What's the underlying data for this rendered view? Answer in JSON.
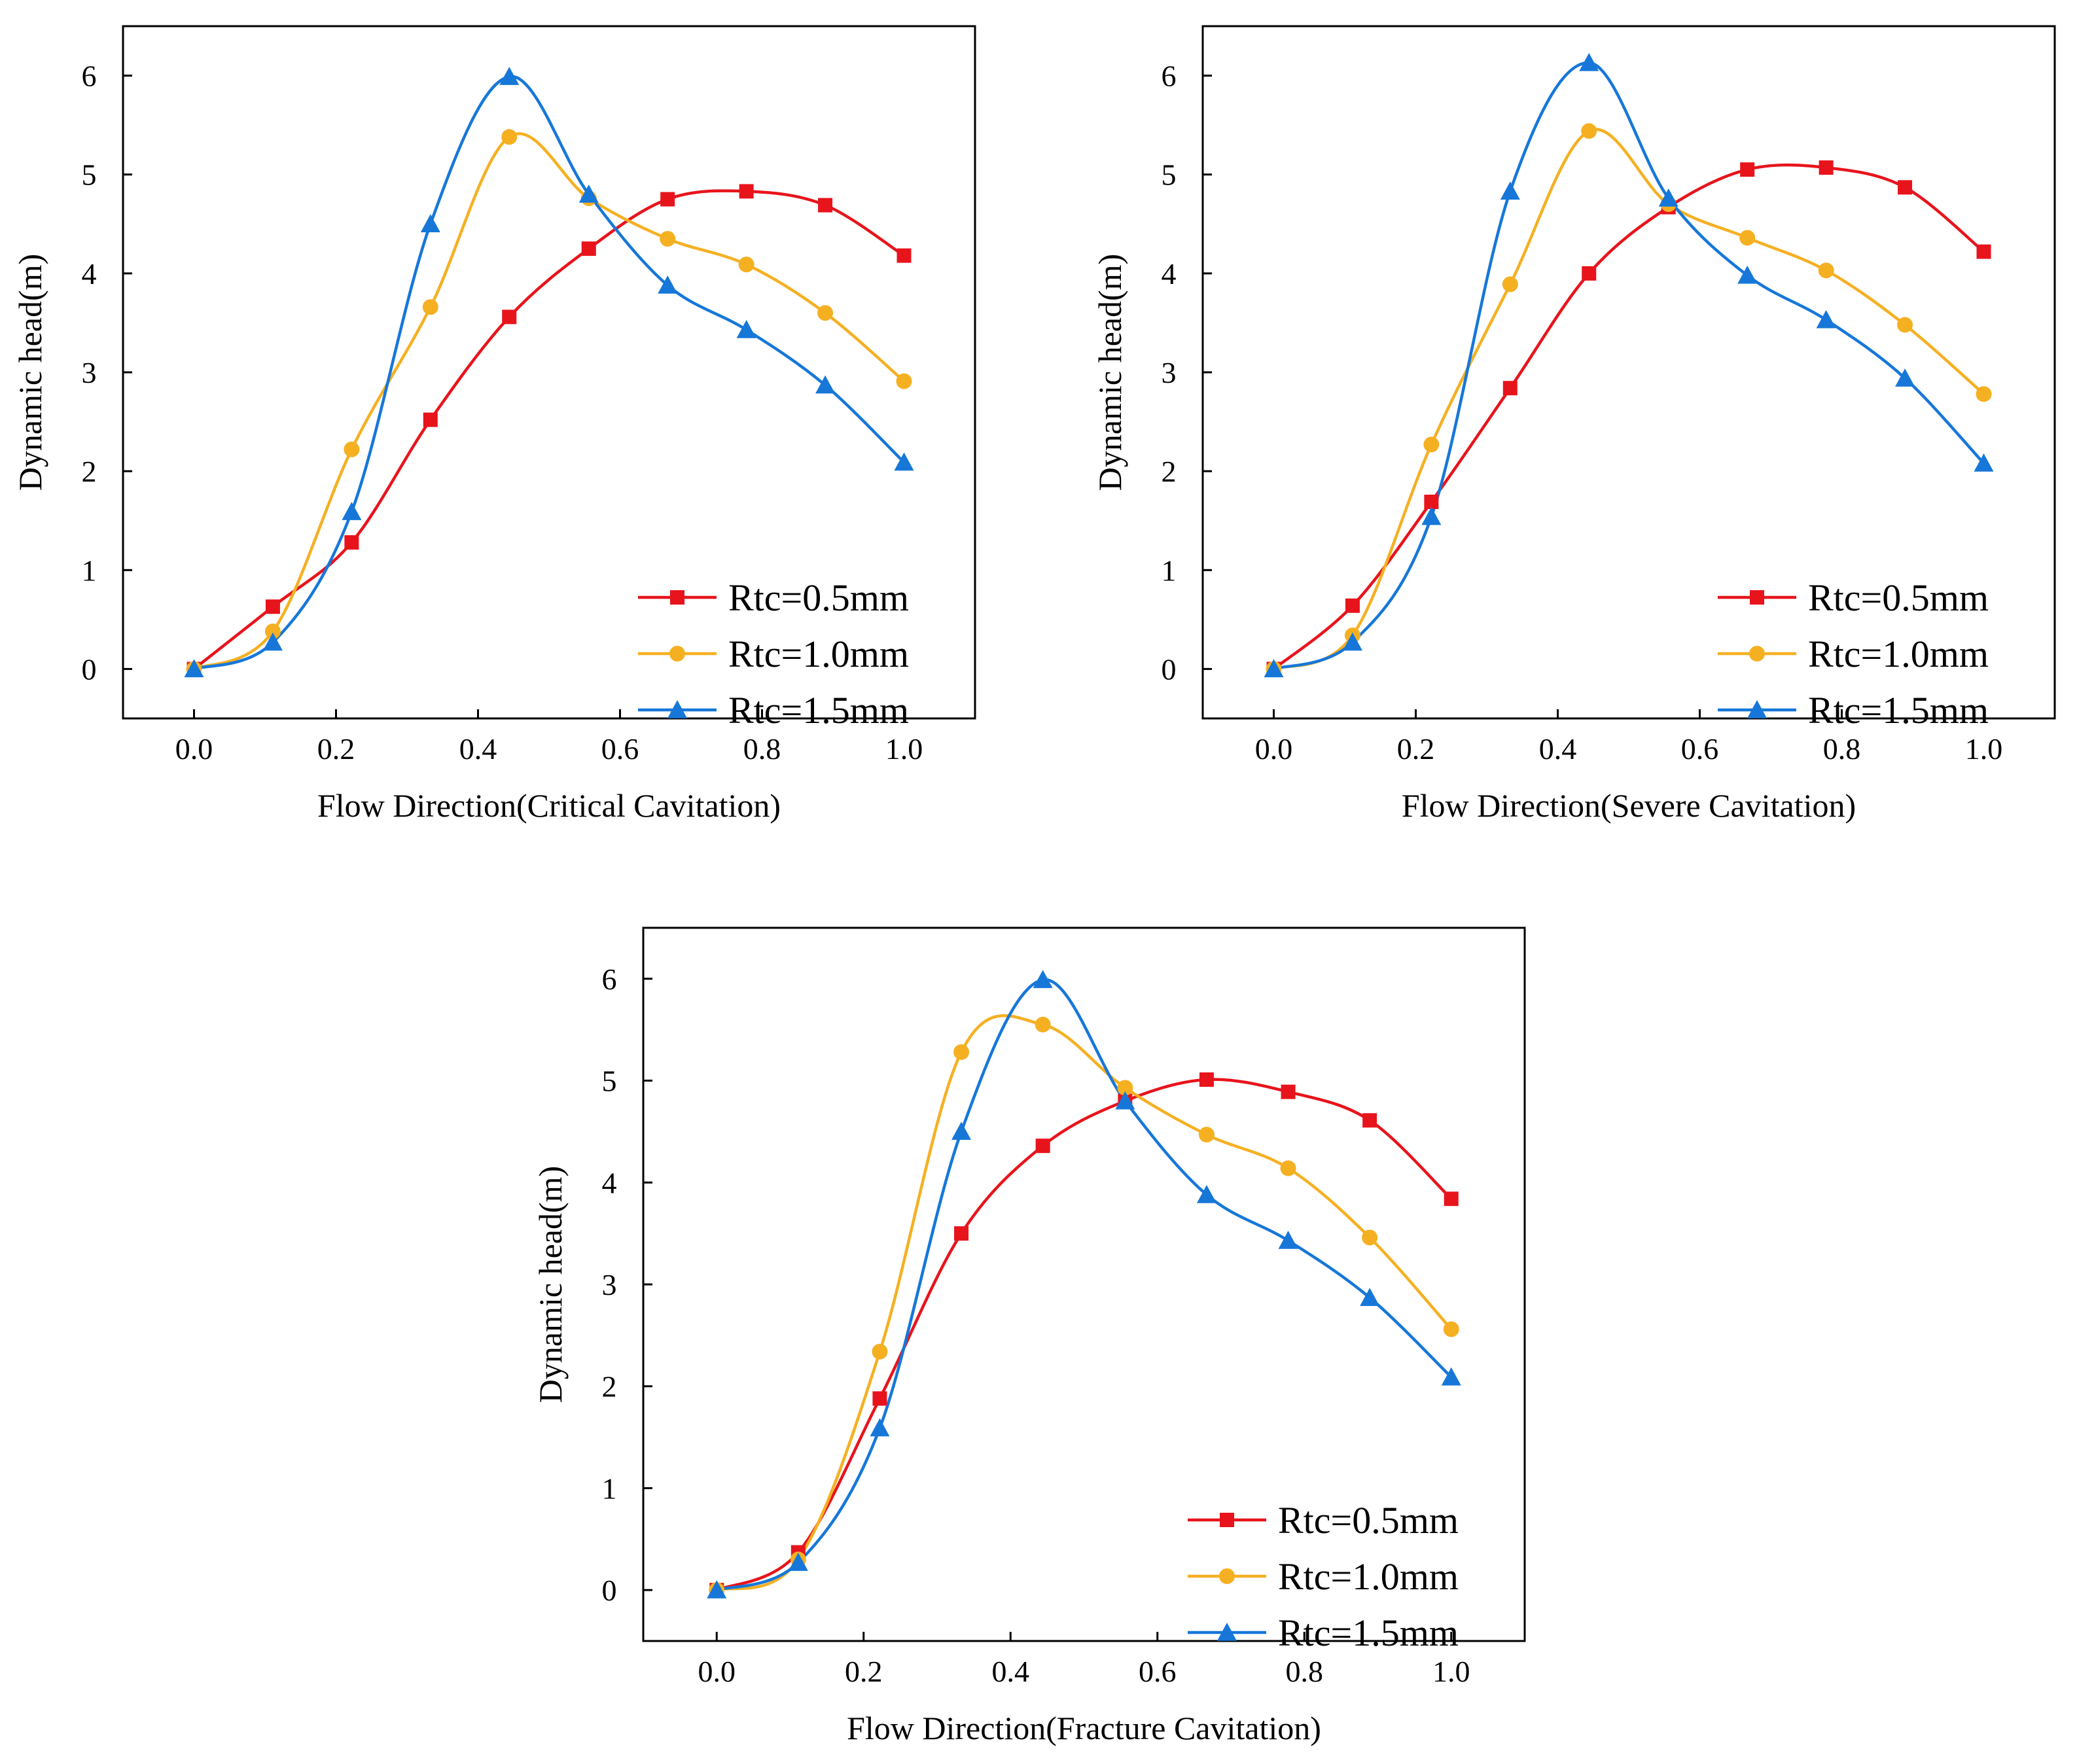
{
  "chart_data": [
    {
      "type": "line",
      "xlabel": "Flow Direction(Critical Cavitation)",
      "ylabel": "Dynamic head(m)",
      "xlim": [
        -0.1,
        1.1
      ],
      "ylim": [
        -0.5,
        6.5
      ],
      "xticks": [
        "0.0",
        "0.2",
        "0.4",
        "0.6",
        "0.8",
        "1.0"
      ],
      "yticks": [
        "0",
        "1",
        "2",
        "3",
        "4",
        "5",
        "6"
      ],
      "legend_position": "bottom-right",
      "x": [
        0.0,
        0.111,
        0.222,
        0.333,
        0.444,
        0.556,
        0.667,
        0.778,
        0.889,
        1.0
      ],
      "series": [
        {
          "name": "Rtc=0.5mm",
          "color": "#e8141c",
          "marker": "square",
          "values": [
            0.0,
            0.63,
            1.28,
            2.52,
            3.56,
            4.25,
            4.75,
            4.83,
            4.69,
            4.18
          ]
        },
        {
          "name": "Rtc=1.0mm",
          "color": "#f5b022",
          "marker": "circle",
          "values": [
            0.0,
            0.38,
            2.22,
            3.66,
            5.38,
            4.76,
            4.35,
            4.09,
            3.6,
            2.91
          ]
        },
        {
          "name": "Rtc=1.5mm",
          "color": "#1677d9",
          "marker": "triangle",
          "values": [
            0.0,
            0.27,
            1.59,
            4.5,
            5.99,
            4.8,
            3.88,
            3.43,
            2.87,
            2.09
          ]
        }
      ]
    },
    {
      "type": "line",
      "xlabel": "Flow Direction(Severe Cavitation)",
      "ylabel": "Dynamic head(m)",
      "xlim": [
        -0.1,
        1.1
      ],
      "ylim": [
        -0.5,
        6.5
      ],
      "xticks": [
        "0.0",
        "0.2",
        "0.4",
        "0.6",
        "0.8",
        "1.0"
      ],
      "yticks": [
        "0",
        "1",
        "2",
        "3",
        "4",
        "5",
        "6"
      ],
      "legend_position": "bottom-right",
      "x": [
        0.0,
        0.111,
        0.222,
        0.333,
        0.444,
        0.556,
        0.667,
        0.778,
        0.889,
        1.0
      ],
      "series": [
        {
          "name": "Rtc=0.5mm",
          "color": "#e8141c",
          "marker": "square",
          "values": [
            0.0,
            0.64,
            1.69,
            2.84,
            4.0,
            4.67,
            5.05,
            5.07,
            4.87,
            4.22
          ]
        },
        {
          "name": "Rtc=1.0mm",
          "color": "#f5b022",
          "marker": "circle",
          "values": [
            0.0,
            0.34,
            2.27,
            3.89,
            5.44,
            4.7,
            4.36,
            4.03,
            3.48,
            2.78
          ]
        },
        {
          "name": "Rtc=1.5mm",
          "color": "#1677d9",
          "marker": "triangle",
          "values": [
            0.0,
            0.27,
            1.54,
            4.83,
            6.13,
            4.76,
            3.98,
            3.53,
            2.94,
            2.08
          ]
        }
      ]
    },
    {
      "type": "line",
      "xlabel": "Flow Direction(Fracture Cavitation)",
      "ylabel": "Dynamic head(m)",
      "xlim": [
        -0.1,
        1.1
      ],
      "ylim": [
        -0.5,
        6.5
      ],
      "xticks": [
        "0.0",
        "0.2",
        "0.4",
        "0.6",
        "0.8",
        "1.0"
      ],
      "yticks": [
        "0",
        "1",
        "2",
        "3",
        "4",
        "5",
        "6"
      ],
      "legend_position": "bottom-right",
      "x": [
        0.0,
        0.111,
        0.222,
        0.333,
        0.444,
        0.556,
        0.667,
        0.778,
        0.889,
        1.0
      ],
      "series": [
        {
          "name": "Rtc=0.5mm",
          "color": "#e8141c",
          "marker": "square",
          "values": [
            0.0,
            0.37,
            1.88,
            3.5,
            4.36,
            4.8,
            5.01,
            4.89,
            4.61,
            3.84
          ]
        },
        {
          "name": "Rtc=1.0mm",
          "color": "#f5b022",
          "marker": "circle",
          "values": [
            0.0,
            0.3,
            2.34,
            5.28,
            5.55,
            4.93,
            4.47,
            4.14,
            3.46,
            2.56
          ]
        },
        {
          "name": "Rtc=1.5mm",
          "color": "#1677d9",
          "marker": "triangle",
          "values": [
            0.0,
            0.27,
            1.59,
            4.5,
            5.99,
            4.8,
            3.88,
            3.43,
            2.87,
            2.09
          ]
        }
      ]
    }
  ]
}
